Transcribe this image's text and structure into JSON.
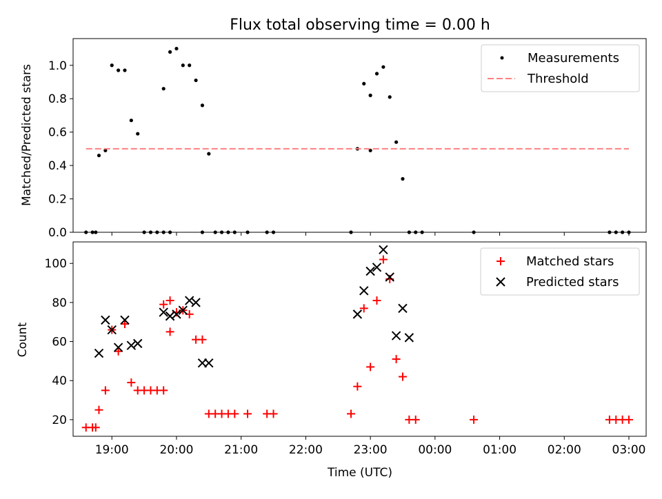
{
  "chart_data": [
    {
      "type": "scatter",
      "title": "Flux total observing time = 0.00 h",
      "xlabel": "",
      "ylabel": "Matched/Predicted stars",
      "xlim": [
        "18:24",
        "03:16"
      ],
      "ylim": [
        0,
        1.16
      ],
      "yticks": [
        "0.0",
        "0.2",
        "0.4",
        "0.6",
        "0.8",
        "1.0"
      ],
      "legend_position": "top-right",
      "series": [
        {
          "name": "Measurements",
          "color": "#000000",
          "marker": "dot",
          "x": [
            "18:36",
            "18:42",
            "18:45",
            "18:48",
            "18:54",
            "19:00",
            "19:06",
            "19:12",
            "19:18",
            "19:24",
            "19:30",
            "19:36",
            "19:42",
            "19:48",
            "19:54",
            "19:48",
            "19:54",
            "20:00",
            "20:06",
            "20:12",
            "20:18",
            "20:24",
            "20:24",
            "20:30",
            "20:36",
            "20:42",
            "20:48",
            "20:54",
            "21:06",
            "21:24",
            "21:30",
            "22:42",
            "22:48",
            "22:54",
            "23:00",
            "23:00",
            "23:06",
            "23:12",
            "23:18",
            "23:24",
            "23:30",
            "23:36",
            "23:42",
            "23:48",
            "00:36",
            "02:42",
            "02:48",
            "02:54",
            "03:00"
          ],
          "y": [
            0,
            0,
            0,
            0.46,
            0.49,
            1.0,
            0.97,
            0.97,
            0.67,
            0.59,
            0,
            0,
            0,
            0,
            0,
            0.86,
            1.08,
            1.1,
            1.0,
            1.0,
            0.91,
            0.76,
            0,
            0.47,
            0,
            0,
            0,
            0,
            0,
            0,
            0,
            0,
            0.5,
            0.89,
            0.49,
            0.82,
            0.95,
            0.99,
            0.81,
            0.54,
            0.32,
            0,
            0,
            0,
            0,
            0,
            0,
            0,
            0
          ],
          "x_note": ""
        },
        {
          "name": "Threshold",
          "color": "#ff7f7f",
          "style": "dashed",
          "x": [
            "18:36",
            "03:00"
          ],
          "y": [
            0.5,
            0.5
          ]
        }
      ]
    },
    {
      "type": "scatter",
      "title": "",
      "xlabel": "Time (UTC)",
      "ylabel": "Count",
      "xlim": [
        "18:24",
        "03:16"
      ],
      "ylim": [
        11.5,
        111
      ],
      "yticks": [
        "20",
        "40",
        "60",
        "80",
        "100"
      ],
      "xticks": [
        "19:00",
        "20:00",
        "21:00",
        "22:00",
        "23:00",
        "00:00",
        "01:00",
        "02:00",
        "03:00"
      ],
      "legend_position": "top-right",
      "series": [
        {
          "name": "Matched stars",
          "color": "#ff0000",
          "marker": "plus",
          "x": [
            "18:36",
            "18:42",
            "18:45",
            "18:48",
            "18:54",
            "19:00",
            "19:06",
            "19:12",
            "19:18",
            "19:24",
            "19:30",
            "19:36",
            "19:42",
            "19:48",
            "19:54",
            "19:48",
            "19:54",
            "20:00",
            "20:06",
            "20:12",
            "20:18",
            "20:24",
            "20:30",
            "20:36",
            "20:42",
            "20:48",
            "20:54",
            "21:06",
            "21:24",
            "21:30",
            "22:42",
            "22:48",
            "22:54",
            "23:00",
            "23:06",
            "23:12",
            "23:18",
            "23:24",
            "23:30",
            "23:36",
            "23:42",
            "00:36",
            "02:42",
            "02:48",
            "02:54",
            "03:00"
          ],
          "y": [
            16,
            16,
            16,
            25,
            35,
            66,
            55,
            69,
            39,
            35,
            35,
            35,
            35,
            35,
            65,
            79,
            81,
            75,
            76,
            74,
            61,
            61,
            23,
            23,
            23,
            23,
            23,
            23,
            23,
            23,
            23,
            37,
            77,
            47,
            81,
            102,
            92,
            51,
            42,
            20,
            20,
            20,
            20,
            20,
            20,
            20
          ]
        },
        {
          "name": "Predicted stars",
          "color": "#000000",
          "marker": "x",
          "x": [
            "18:48",
            "18:54",
            "19:00",
            "19:06",
            "19:12",
            "19:18",
            "19:24",
            "19:48",
            "19:54",
            "19:54",
            "20:00",
            "20:06",
            "20:12",
            "20:18",
            "20:24",
            "20:30",
            "22:48",
            "22:54",
            "23:00",
            "23:06",
            "23:12",
            "23:18",
            "23:24",
            "23:30",
            "23:36"
          ],
          "y": [
            54,
            71,
            66,
            57,
            71,
            58,
            59,
            75,
            73,
            73,
            74,
            76,
            81,
            80,
            49,
            49,
            74,
            86,
            96,
            98,
            107,
            93,
            63,
            77,
            62
          ]
        }
      ]
    }
  ]
}
